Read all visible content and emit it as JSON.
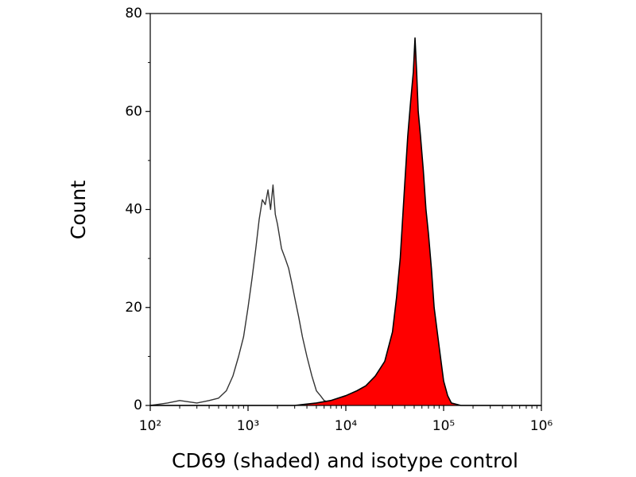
{
  "chart_data": {
    "type": "area",
    "xlabel": "CD69 (shaded) and isotype control",
    "ylabel": "Count",
    "xscale": "log",
    "xlim": [
      100,
      1000000
    ],
    "xticks": [
      {
        "value": 100,
        "label": "10²"
      },
      {
        "value": 1000,
        "label": "10³"
      },
      {
        "value": 10000,
        "label": "10⁴"
      },
      {
        "value": 100000,
        "label": "10⁵"
      },
      {
        "value": 1000000,
        "label": "10⁶"
      }
    ],
    "ylim": [
      0,
      80
    ],
    "yticks": [
      0,
      20,
      40,
      60,
      80
    ],
    "yminorticks": [
      10,
      30,
      50,
      70
    ],
    "series": [
      {
        "color": "#333333",
        "fill": false,
        "x": [
          100,
          150,
          200,
          300,
          400,
          500,
          600,
          700,
          800,
          900,
          1000,
          1100,
          1200,
          1300,
          1400,
          1500,
          1600,
          1700,
          1800,
          1900,
          2000,
          2200,
          2400,
          2600,
          2800,
          3000,
          3300,
          3600,
          4000,
          4500,
          5000,
          5500,
          6000,
          7000,
          8000,
          10000
        ],
        "values": [
          0,
          0.5,
          1,
          0.5,
          1,
          1.5,
          3,
          6,
          10,
          14,
          20,
          26,
          32,
          38,
          42,
          41,
          44,
          40,
          45,
          39,
          37,
          32,
          30,
          28,
          25,
          22,
          18,
          14,
          10,
          6,
          3,
          2,
          1,
          0.5,
          0.5,
          0
        ]
      },
      {
        "color": "#ff0000",
        "fill": true,
        "x": [
          100,
          1000,
          3000,
          5000,
          7000,
          10000,
          13000,
          16000,
          20000,
          25000,
          30000,
          33000,
          36000,
          40000,
          43000,
          46000,
          49000,
          51000,
          53000,
          55000,
          58000,
          62000,
          66000,
          70000,
          75000,
          80000,
          90000,
          100000,
          110000,
          120000,
          150000,
          200000,
          1000000
        ],
        "values": [
          0,
          0,
          0,
          0.5,
          1,
          2,
          3,
          4,
          6,
          9,
          15,
          22,
          30,
          45,
          55,
          62,
          68,
          75,
          68,
          60,
          55,
          48,
          40,
          35,
          28,
          20,
          12,
          5,
          2,
          0.5,
          0,
          0,
          0
        ]
      }
    ]
  }
}
